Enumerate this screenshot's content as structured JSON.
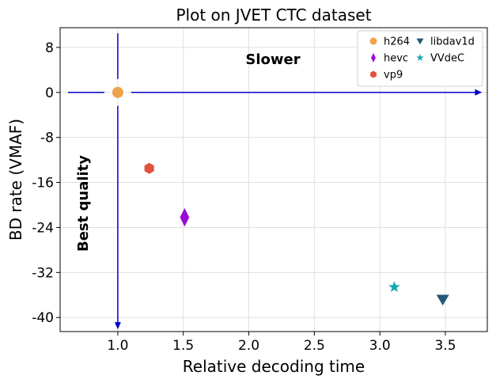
{
  "chart_data": {
    "type": "scatter",
    "title": "Plot on JVET CTC dataset",
    "xlabel": "Relative decoding time",
    "ylabel": "BD rate (VMAF)",
    "xlim": [
      0.56,
      3.82
    ],
    "ylim": [
      -42.5,
      11.5
    ],
    "xticks": [
      1.0,
      1.5,
      2.0,
      2.5,
      3.0,
      3.5
    ],
    "xtick_labels": [
      "1.0",
      "1.5",
      "2.0",
      "2.5",
      "3.0",
      "3.5"
    ],
    "yticks": [
      8,
      0,
      -8,
      -16,
      -24,
      -32,
      -40
    ],
    "ytick_labels": [
      "8",
      "0",
      "-8",
      "-16",
      "-24",
      "-32",
      "-40"
    ],
    "grid": true,
    "legend_position": "top-right",
    "series": [
      {
        "name": "h264",
        "x": 1.0,
        "y": 0.0,
        "marker": "circle",
        "color": "#f0a24a"
      },
      {
        "name": "hevc",
        "x": 1.51,
        "y": -22.2,
        "marker": "diamond",
        "color": "#9b0ad6"
      },
      {
        "name": "vp9",
        "x": 1.24,
        "y": -13.5,
        "marker": "hexagon",
        "color": "#e0523a"
      },
      {
        "name": "libdav1d",
        "x": 3.48,
        "y": -36.8,
        "marker": "triangle-down",
        "color": "#235a78"
      },
      {
        "name": "VVdeC",
        "x": 3.11,
        "y": -34.6,
        "marker": "star",
        "color": "#17a8b0"
      }
    ],
    "annotations": {
      "slower": "Slower",
      "best_quality": "Best quality"
    },
    "arrow_color": "#0000cc"
  }
}
